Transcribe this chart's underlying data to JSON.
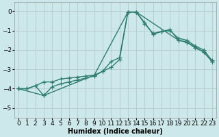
{
  "bg_color": "#cde8ea",
  "grid_color": "#b8ced0",
  "line_color": "#2e7d6e",
  "marker": "+",
  "markersize": 4,
  "linewidth": 1.0,
  "xlabel": "Humidex (Indice chaleur)",
  "xlabel_fontsize": 7,
  "tick_fontsize": 6.5,
  "xlim": [
    -0.5,
    23.5
  ],
  "ylim": [
    -5.5,
    0.45
  ],
  "yticks": [
    0,
    -1,
    -2,
    -3,
    -4,
    -5
  ],
  "xticks": [
    0,
    1,
    2,
    3,
    4,
    5,
    6,
    7,
    8,
    9,
    10,
    11,
    12,
    13,
    14,
    15,
    16,
    17,
    18,
    19,
    20,
    21,
    22,
    23
  ],
  "series1_x": [
    0,
    1,
    2,
    3,
    4,
    5,
    6,
    7,
    8,
    9,
    10,
    11,
    12,
    13,
    14,
    15,
    16,
    17,
    18,
    19,
    20,
    21,
    22,
    23
  ],
  "series1_y": [
    -4.0,
    -4.0,
    -3.85,
    -3.65,
    -3.65,
    -3.5,
    -3.45,
    -3.4,
    -3.35,
    -3.3,
    -3.1,
    -2.6,
    -2.4,
    -0.05,
    -0.05,
    -0.65,
    -1.15,
    -1.05,
    -0.95,
    -1.5,
    -1.6,
    -1.9,
    -2.1,
    -2.6
  ],
  "series2_x": [
    0,
    1,
    2,
    3,
    4,
    5,
    6,
    7,
    8,
    9,
    10,
    11,
    12,
    13,
    14,
    15,
    16,
    17,
    18,
    19,
    20,
    21,
    22,
    23
  ],
  "series2_y": [
    -4.0,
    -4.0,
    -3.85,
    -4.35,
    -3.9,
    -3.75,
    -3.65,
    -3.55,
    -3.45,
    -3.35,
    -3.1,
    -2.9,
    -2.5,
    -0.05,
    -0.05,
    -0.6,
    -1.2,
    -1.05,
    -1.0,
    -1.4,
    -1.5,
    -1.8,
    -2.0,
    -2.55
  ],
  "series3_x": [
    0,
    3,
    9,
    13,
    14,
    19,
    20,
    22,
    23
  ],
  "series3_y": [
    -4.0,
    -4.35,
    -3.3,
    -0.05,
    -0.05,
    -1.5,
    -1.6,
    -2.1,
    -2.6
  ]
}
